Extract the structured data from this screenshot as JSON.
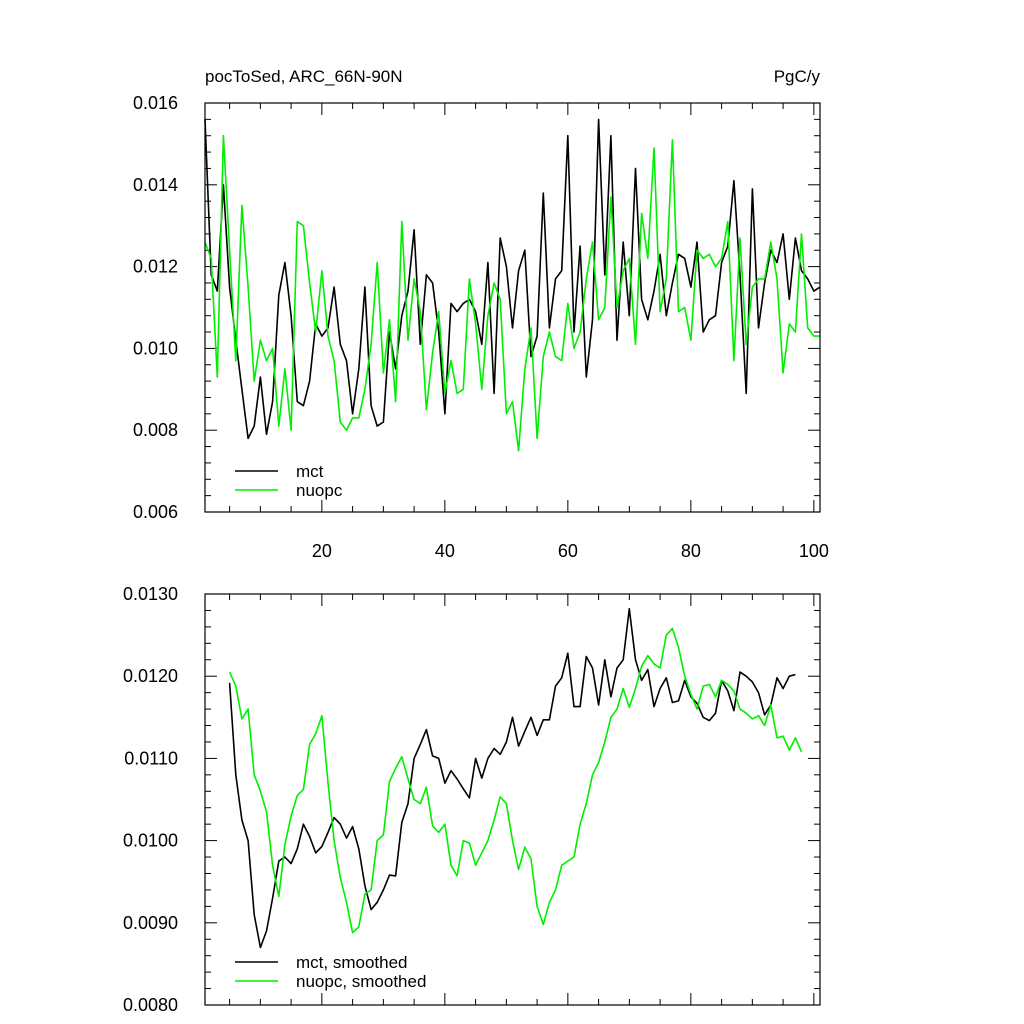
{
  "colors": {
    "mct": "#000000",
    "nuopc": "#00ee00",
    "background": "#ffffff"
  },
  "chart_data": [
    {
      "type": "line",
      "title": "pocToSed, ARC_66N-90N",
      "units": "PgC/y",
      "xlim": [
        1,
        101
      ],
      "ylim": [
        0.006,
        0.016
      ],
      "xticks": [
        20,
        40,
        60,
        80,
        100
      ],
      "xtick_labels": [
        "20",
        "40",
        "60",
        "80",
        "100"
      ],
      "yticks": [
        0.006,
        0.008,
        0.01,
        0.012,
        0.014,
        0.016
      ],
      "ytick_labels": [
        "0.006",
        "0.008",
        "0.010",
        "0.012",
        "0.014",
        "0.016"
      ],
      "grid": false,
      "legend_position": "bottom-left",
      "series": [
        {
          "name": "mct",
          "color": "#000000",
          "x": [
            1,
            2,
            3,
            4,
            5,
            6,
            7,
            8,
            9,
            10,
            11,
            12,
            13,
            14,
            15,
            16,
            17,
            18,
            19,
            20,
            21,
            22,
            23,
            24,
            25,
            26,
            27,
            28,
            29,
            30,
            31,
            32,
            33,
            34,
            35,
            36,
            37,
            38,
            39,
            40,
            41,
            42,
            43,
            44,
            45,
            46,
            47,
            48,
            49,
            50,
            51,
            52,
            53,
            54,
            55,
            56,
            57,
            58,
            59,
            60,
            61,
            62,
            63,
            64,
            65,
            66,
            67,
            68,
            69,
            70,
            71,
            72,
            73,
            74,
            75,
            76,
            77,
            78,
            79,
            80,
            81,
            82,
            83,
            84,
            85,
            86,
            87,
            88,
            89,
            90,
            91,
            92,
            93,
            94,
            95,
            96,
            97,
            98,
            99,
            100,
            101
          ],
          "values": [
            0.0156,
            0.0118,
            0.0114,
            0.014,
            0.0115,
            0.0102,
            0.009,
            0.0078,
            0.0081,
            0.0093,
            0.0079,
            0.0087,
            0.0113,
            0.0121,
            0.0108,
            0.0087,
            0.0086,
            0.0092,
            0.0106,
            0.0103,
            0.0105,
            0.0115,
            0.0101,
            0.0097,
            0.0084,
            0.0095,
            0.0115,
            0.0086,
            0.0081,
            0.0082,
            0.0104,
            0.0095,
            0.0108,
            0.0114,
            0.0129,
            0.0101,
            0.0118,
            0.0116,
            0.0104,
            0.0084,
            0.0111,
            0.0109,
            0.0111,
            0.0112,
            0.0109,
            0.0101,
            0.0121,
            0.0089,
            0.0127,
            0.012,
            0.0105,
            0.0119,
            0.0124,
            0.0098,
            0.0103,
            0.0138,
            0.0105,
            0.0117,
            0.0119,
            0.0152,
            0.0104,
            0.0125,
            0.0093,
            0.0107,
            0.0156,
            0.0118,
            0.0152,
            0.0102,
            0.0126,
            0.0108,
            0.0144,
            0.0112,
            0.0107,
            0.0114,
            0.0123,
            0.0108,
            0.0116,
            0.0123,
            0.0122,
            0.0115,
            0.0126,
            0.0104,
            0.0107,
            0.0108,
            0.0121,
            0.0125,
            0.0141,
            0.0118,
            0.0089,
            0.0139,
            0.0105,
            0.0116,
            0.0124,
            0.0121,
            0.0128,
            0.0112,
            0.0127,
            0.0119,
            0.0117,
            0.0114,
            0.0115
          ]
        },
        {
          "name": "nuopc",
          "color": "#00ee00",
          "x": [
            1,
            2,
            3,
            4,
            5,
            6,
            7,
            8,
            9,
            10,
            11,
            12,
            13,
            14,
            15,
            16,
            17,
            18,
            19,
            20,
            21,
            22,
            23,
            24,
            25,
            26,
            27,
            28,
            29,
            30,
            31,
            32,
            33,
            34,
            35,
            36,
            37,
            38,
            39,
            40,
            41,
            42,
            43,
            44,
            45,
            46,
            47,
            48,
            49,
            50,
            51,
            52,
            53,
            54,
            55,
            56,
            57,
            58,
            59,
            60,
            61,
            62,
            63,
            64,
            65,
            66,
            67,
            68,
            69,
            70,
            71,
            72,
            73,
            74,
            75,
            76,
            77,
            78,
            79,
            80,
            81,
            82,
            83,
            84,
            85,
            86,
            87,
            88,
            89,
            90,
            91,
            92,
            93,
            94,
            95,
            96,
            97,
            98,
            99,
            100,
            101
          ],
          "values": [
            0.0126,
            0.0122,
            0.0093,
            0.0152,
            0.0124,
            0.0097,
            0.0135,
            0.0115,
            0.0092,
            0.0102,
            0.0097,
            0.01,
            0.0081,
            0.0095,
            0.008,
            0.0131,
            0.013,
            0.0116,
            0.0104,
            0.0119,
            0.0103,
            0.0097,
            0.0082,
            0.008,
            0.0083,
            0.0083,
            0.009,
            0.0101,
            0.0121,
            0.0094,
            0.0107,
            0.0087,
            0.0131,
            0.0102,
            0.0117,
            0.0109,
            0.0085,
            0.0099,
            0.0109,
            0.0089,
            0.0097,
            0.0089,
            0.009,
            0.0117,
            0.0106,
            0.009,
            0.0108,
            0.0116,
            0.0112,
            0.0084,
            0.0087,
            0.0075,
            0.0095,
            0.0105,
            0.0078,
            0.0098,
            0.0104,
            0.0098,
            0.0097,
            0.0111,
            0.01,
            0.0104,
            0.0117,
            0.0126,
            0.0107,
            0.011,
            0.0137,
            0.011,
            0.0119,
            0.0122,
            0.0101,
            0.0133,
            0.0122,
            0.0149,
            0.0109,
            0.0117,
            0.0151,
            0.0109,
            0.011,
            0.0102,
            0.0124,
            0.0122,
            0.0123,
            0.012,
            0.0122,
            0.0131,
            0.0097,
            0.0127,
            0.0101,
            0.0115,
            0.0117,
            0.0117,
            0.0126,
            0.0117,
            0.0094,
            0.0106,
            0.0104,
            0.0128,
            0.0105,
            0.0103,
            0.0103
          ]
        }
      ]
    },
    {
      "type": "line",
      "title": "",
      "xlim": [
        1,
        101
      ],
      "ylim": [
        0.008,
        0.013
      ],
      "xticks": [
        20,
        40,
        60,
        80,
        100
      ],
      "yticks": [
        0.008,
        0.009,
        0.01,
        0.011,
        0.012,
        0.013
      ],
      "ytick_labels": [
        "0.0080",
        "0.0090",
        "0.0100",
        "0.0110",
        "0.0120",
        "0.0130"
      ],
      "grid": false,
      "legend_position": "bottom-left",
      "series": [
        {
          "name": "mct, smoothed",
          "color": "#000000",
          "x": [
            5,
            6,
            7,
            8,
            9,
            10,
            11,
            12,
            13,
            14,
            15,
            16,
            17,
            18,
            19,
            20,
            21,
            22,
            23,
            24,
            25,
            26,
            27,
            28,
            29,
            30,
            31,
            32,
            33,
            34,
            35,
            36,
            37,
            38,
            39,
            40,
            41,
            42,
            43,
            44,
            45,
            46,
            47,
            48,
            49,
            50,
            51,
            52,
            53,
            54,
            55,
            56,
            57,
            58,
            59,
            60,
            61,
            62,
            63,
            64,
            65,
            66,
            67,
            68,
            69,
            70,
            71,
            72,
            73,
            74,
            75,
            76,
            77,
            78,
            79,
            80,
            81,
            82,
            83,
            84,
            85,
            86,
            87,
            88,
            89,
            90,
            91,
            92,
            93,
            94,
            95,
            96,
            97
          ],
          "values": [
            0.01192,
            0.0108,
            0.01025,
            0.01,
            0.0091,
            0.0087,
            0.0089,
            0.0093,
            0.00975,
            0.0098,
            0.00972,
            0.0099,
            0.0102,
            0.01005,
            0.00985,
            0.00993,
            0.0101,
            0.01028,
            0.0102,
            0.01003,
            0.01017,
            0.0099,
            0.00945,
            0.00916,
            0.00925,
            0.0094,
            0.00958,
            0.00957,
            0.01022,
            0.01045,
            0.011,
            0.01117,
            0.01135,
            0.01103,
            0.011,
            0.0107,
            0.01085,
            0.01075,
            0.01063,
            0.01052,
            0.011,
            0.01076,
            0.011,
            0.01112,
            0.01105,
            0.0112,
            0.0115,
            0.01115,
            0.01133,
            0.0115,
            0.01128,
            0.01147,
            0.01147,
            0.01188,
            0.01198,
            0.01228,
            0.01163,
            0.01163,
            0.01224,
            0.0121,
            0.01165,
            0.0122,
            0.01175,
            0.0121,
            0.0122,
            0.01282,
            0.0122,
            0.01195,
            0.01208,
            0.01163,
            0.01185,
            0.01198,
            0.01168,
            0.0117,
            0.01195,
            0.01175,
            0.01167,
            0.0115,
            0.01146,
            0.01155,
            0.01195,
            0.01182,
            0.01158,
            0.01205,
            0.012,
            0.01193,
            0.0118,
            0.01153,
            0.01165,
            0.01198,
            0.01185,
            0.012,
            0.01202
          ]
        },
        {
          "name": "nuopc, smoothed",
          "color": "#00ee00",
          "x": [
            5,
            6,
            7,
            8,
            9,
            10,
            11,
            12,
            13,
            14,
            15,
            16,
            17,
            18,
            19,
            20,
            21,
            22,
            23,
            24,
            25,
            26,
            27,
            28,
            29,
            30,
            31,
            32,
            33,
            34,
            35,
            36,
            37,
            38,
            39,
            40,
            41,
            42,
            43,
            44,
            45,
            46,
            47,
            48,
            49,
            50,
            51,
            52,
            53,
            54,
            55,
            56,
            57,
            58,
            59,
            60,
            61,
            62,
            63,
            64,
            65,
            66,
            67,
            68,
            69,
            70,
            71,
            72,
            73,
            74,
            75,
            76,
            77,
            78,
            79,
            80,
            81,
            82,
            83,
            84,
            85,
            86,
            87,
            88,
            89,
            90,
            91,
            92,
            93,
            94,
            95,
            96,
            97,
            98
          ],
          "values": [
            0.01205,
            0.01188,
            0.01148,
            0.0116,
            0.0108,
            0.0106,
            0.01035,
            0.0097,
            0.00932,
            0.00995,
            0.0103,
            0.01055,
            0.01062,
            0.01117,
            0.0113,
            0.01152,
            0.0107,
            0.01,
            0.00955,
            0.00925,
            0.00888,
            0.00895,
            0.00935,
            0.0094,
            0.01,
            0.01007,
            0.01072,
            0.01088,
            0.01102,
            0.01075,
            0.0105,
            0.01045,
            0.01065,
            0.01018,
            0.0101,
            0.0102,
            0.0097,
            0.00957,
            0.01,
            0.00997,
            0.0097,
            0.00985,
            0.01,
            0.01025,
            0.01053,
            0.01045,
            0.01,
            0.00965,
            0.00992,
            0.00978,
            0.0092,
            0.00898,
            0.00925,
            0.0094,
            0.0097,
            0.00975,
            0.0098,
            0.0102,
            0.01045,
            0.0108,
            0.01095,
            0.0112,
            0.0115,
            0.0116,
            0.01185,
            0.01162,
            0.01185,
            0.01212,
            0.01225,
            0.01215,
            0.0121,
            0.0125,
            0.01258,
            0.01235,
            0.012,
            0.01178,
            0.0116,
            0.01188,
            0.0119,
            0.01175,
            0.01195,
            0.0119,
            0.01182,
            0.0116,
            0.01155,
            0.01148,
            0.01152,
            0.0114,
            0.01165,
            0.01125,
            0.01127,
            0.0111,
            0.01125,
            0.01108
          ]
        }
      ]
    }
  ]
}
